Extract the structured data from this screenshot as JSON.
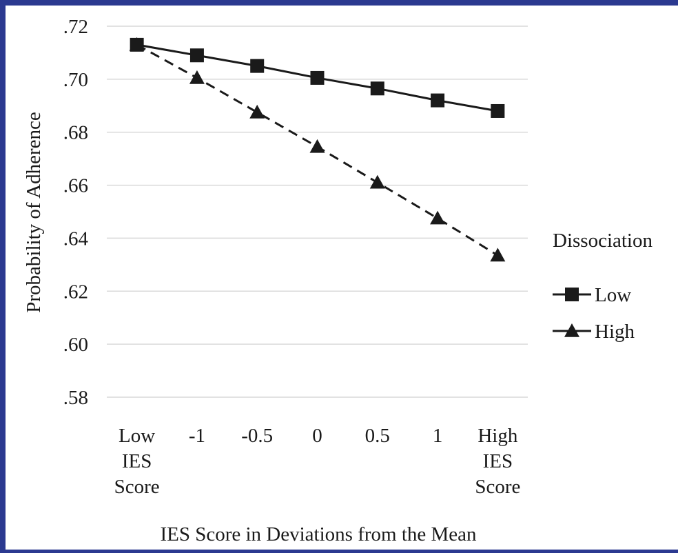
{
  "chart_data": {
    "type": "line",
    "title": "",
    "xlabel": "IES Score in Deviations from the Mean",
    "ylabel": "Probability of Adherence",
    "ylim": [
      0.58,
      0.72
    ],
    "y_ticks": [
      {
        "value": 0.58,
        "label": ".58"
      },
      {
        "value": 0.6,
        "label": ".60"
      },
      {
        "value": 0.62,
        "label": ".62"
      },
      {
        "value": 0.64,
        "label": ".64"
      },
      {
        "value": 0.66,
        "label": ".66"
      },
      {
        "value": 0.68,
        "label": ".68"
      },
      {
        "value": 0.7,
        "label": ".70"
      },
      {
        "value": 0.72,
        "label": ".72"
      }
    ],
    "grid": "horizontal",
    "categories": [
      [
        "Low",
        "IES",
        "Score"
      ],
      [
        "-1"
      ],
      [
        "-0.5"
      ],
      [
        "0"
      ],
      [
        "0.5"
      ],
      [
        "1"
      ],
      [
        "High",
        "IES",
        "Score"
      ]
    ],
    "legend": {
      "title": "Dissociation",
      "placement": "right"
    },
    "series": [
      {
        "name": "Low",
        "marker": "square",
        "line_style": "solid",
        "values": [
          0.713,
          0.709,
          0.705,
          0.7005,
          0.6965,
          0.692,
          0.688
        ]
      },
      {
        "name": "High",
        "marker": "triangle",
        "line_style": "dashed",
        "values": [
          0.713,
          0.7005,
          0.6875,
          0.6745,
          0.661,
          0.6475,
          0.6335
        ]
      }
    ]
  }
}
